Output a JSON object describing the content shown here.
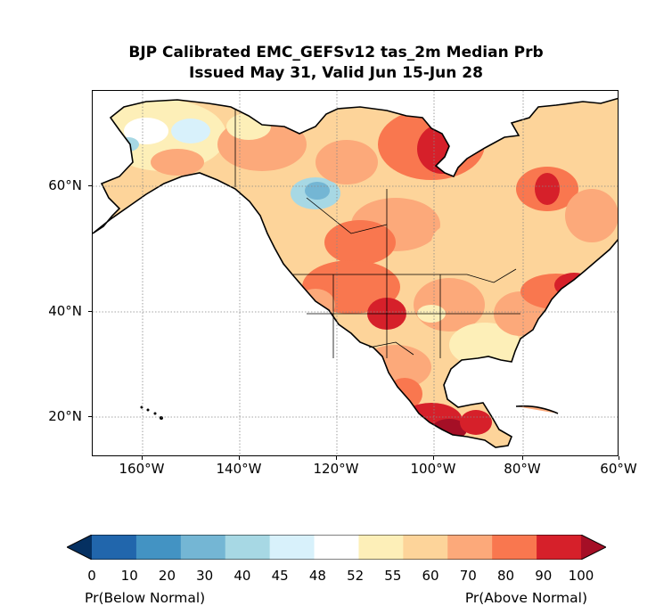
{
  "title": {
    "line1": "BJP Calibrated EMC_GEFSv12 tas_2m Median Prb",
    "line2": "Issued May 31, Valid Jun 15-Jun 28"
  },
  "map": {
    "lon_ticks": [
      "160°W",
      "140°W",
      "120°W",
      "100°W",
      "80°W",
      "60°W"
    ],
    "lat_ticks": [
      "60°N",
      "40°N",
      "20°N"
    ],
    "gridlines": true
  },
  "colorbar": {
    "levels": [
      "0",
      "10",
      "20",
      "30",
      "40",
      "45",
      "48",
      "52",
      "55",
      "60",
      "70",
      "80",
      "90",
      "100"
    ],
    "colors": [
      "#053061",
      "#2166ac",
      "#4393c3",
      "#74b6d4",
      "#a7d8e4",
      "#d8f1fb",
      "#ffffff",
      "#fdefb8",
      "#fdd49a",
      "#fca97a",
      "#f9774f",
      "#d6202a",
      "#a50f26"
    ],
    "left_label": "Pr(Below Normal)",
    "right_label": "Pr(Above Normal)"
  }
}
